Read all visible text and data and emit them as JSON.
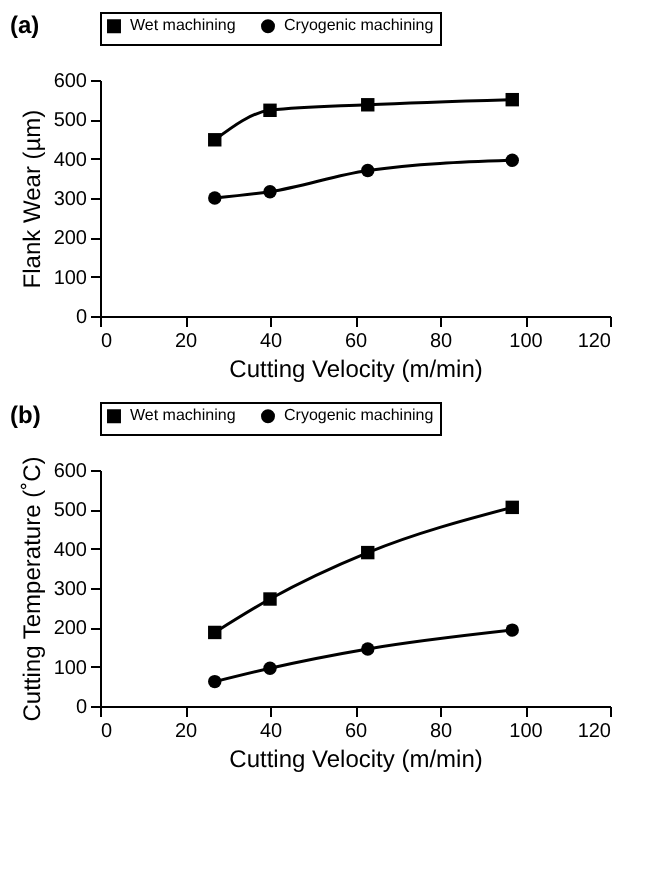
{
  "chart_data": [
    {
      "type": "line",
      "title": "(a)",
      "xlabel": "Cutting Velocity (m/min)",
      "ylabel": "Flank Wear (µm)",
      "x": [
        27,
        40,
        63,
        97
      ],
      "xlim": [
        0,
        120
      ],
      "xticks": [
        0,
        20,
        40,
        60,
        80,
        100,
        120
      ],
      "ylim": [
        0,
        600
      ],
      "yticks": [
        0,
        100,
        200,
        300,
        400,
        500,
        600
      ],
      "grid": false,
      "legend": "top",
      "series": [
        {
          "name": "Wet machining",
          "color": "#000000",
          "marker": "square",
          "values": [
            448,
            523,
            537,
            550
          ]
        },
        {
          "name": "Cryogenic machining",
          "color": "#000000",
          "marker": "circle",
          "values": [
            300,
            316,
            370,
            396
          ]
        }
      ]
    },
    {
      "type": "line",
      "title": "(b)",
      "xlabel": "Cutting Velocity (m/min)",
      "ylabel": "Cutting Temperature (˚C)",
      "x": [
        27,
        40,
        63,
        97
      ],
      "xlim": [
        0,
        120
      ],
      "xticks": [
        0,
        20,
        40,
        60,
        80,
        100,
        120
      ],
      "ylim": [
        0,
        600
      ],
      "yticks": [
        0,
        100,
        200,
        300,
        400,
        500,
        600
      ],
      "grid": false,
      "legend": "top",
      "series": [
        {
          "name": "Wet machining",
          "color": "#000000",
          "marker": "square",
          "values": [
            187,
            272,
            390,
            505
          ]
        },
        {
          "name": "Cryogenic machining",
          "color": "#000000",
          "marker": "circle",
          "values": [
            62,
            96,
            145,
            193
          ]
        }
      ]
    }
  ]
}
